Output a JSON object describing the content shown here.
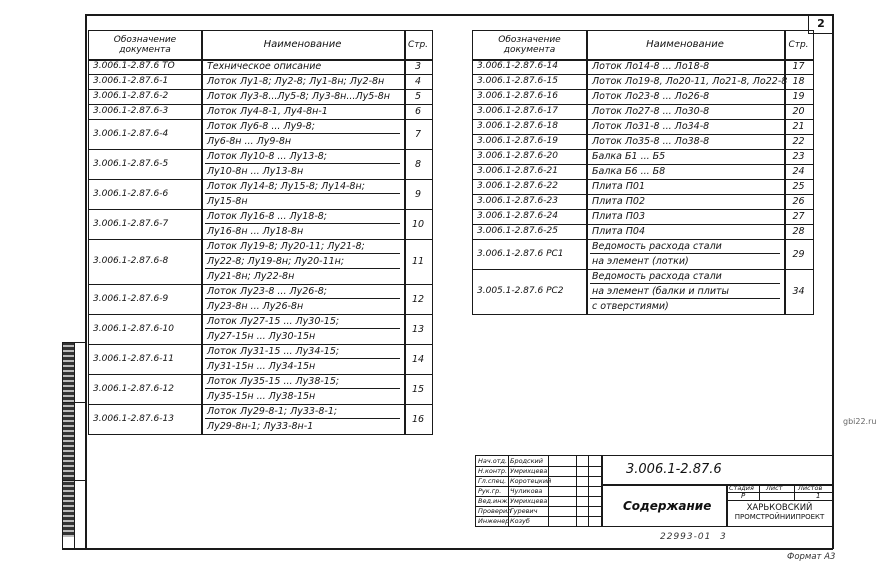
{
  "sheet_number": "2",
  "header": {
    "designation": "Обозначение документа",
    "designation_l1": "Обозначение",
    "designation_l2": "документа",
    "name": "Наименование",
    "page": "Стр."
  },
  "left_rows": [
    {
      "doc": "3.006.1-2.87.6 ТО",
      "lines": [
        "Техническое описание"
      ],
      "page": "3"
    },
    {
      "doc": "3.006.1-2.87.6-1",
      "lines": [
        "Лоток Лу1-8; Лу2-8; Лу1-8н; Лу2-8н"
      ],
      "page": "4"
    },
    {
      "doc": "3.006.1-2.87.6-2",
      "lines": [
        "Лоток Лу3-8...Лу5-8; Лу3-8н...Лу5-8н"
      ],
      "page": "5"
    },
    {
      "doc": "3.006.1-2.87.6-3",
      "lines": [
        "Лоток Лу4-8-1, Лу4-8н-1"
      ],
      "page": "6"
    },
    {
      "doc": "3.006.1-2.87.6-4",
      "lines": [
        "Лоток Лу6-8 ... Лу9-8;",
        "Лу6-8н ... Лу9-8н"
      ],
      "page": "7"
    },
    {
      "doc": "3.006.1-2.87.6-5",
      "lines": [
        "Лоток Лу10-8 ... Лу13-8;",
        "Лу10-8н ... Лу13-8н"
      ],
      "page": "8"
    },
    {
      "doc": "3.006.1-2.87.6-6",
      "lines": [
        "Лоток Лу14-8; Лу15-8; Лу14-8н;",
        "Лу15-8н"
      ],
      "page": "9"
    },
    {
      "doc": "3.006.1-2.87.6-7",
      "lines": [
        "Лоток Лу16-8 ... Лу18-8;",
        "Лу16-8н ... Лу18-8н"
      ],
      "page": "10"
    },
    {
      "doc": "3.006.1-2.87.6-8",
      "lines": [
        "Лоток Лу19-8; Лу20-11; Лу21-8;",
        "Лу22-8; Лу19-8н; Лу20-11н;",
        "Лу21-8н; Лу22-8н"
      ],
      "page": "11"
    },
    {
      "doc": "3.006.1-2.87.6-9",
      "lines": [
        "Лоток Лу23-8 ... Лу26-8;",
        "Лу23-8н ... Лу26-8н"
      ],
      "page": "12"
    },
    {
      "doc": "3.006.1-2.87.6-10",
      "lines": [
        "Лоток Лу27-15 ... Лу30-15;",
        "Лу27-15н ... Лу30-15н"
      ],
      "page": "13"
    },
    {
      "doc": "3.006.1-2.87.6-11",
      "lines": [
        "Лоток Лу31-15 ... Лу34-15;",
        "Лу31-15н ... Лу34-15н"
      ],
      "page": "14"
    },
    {
      "doc": "3.006.1-2.87.6-12",
      "lines": [
        "Лоток Лу35-15 ... Лу38-15;",
        "Лу35-15н ... Лу38-15н"
      ],
      "page": "15"
    },
    {
      "doc": "3.006.1-2.87.6-13",
      "lines": [
        "Лоток Лу29-8-1; Лу33-8-1;",
        "Лу29-8н-1; Лу33-8н-1"
      ],
      "page": "16"
    }
  ],
  "right_rows": [
    {
      "doc": "3.006.1-2.87.6-14",
      "lines": [
        "Лоток Ло14-8 ... Ло18-8"
      ],
      "page": "17"
    },
    {
      "doc": "3.006.1-2.87.6-15",
      "lines": [
        "Лоток Ло19-8, Ло20-11, Ло21-8, Ло22-8"
      ],
      "page": "18"
    },
    {
      "doc": "3.006.1-2.87.6-16",
      "lines": [
        "Лоток Ло23-8 ... Ло26-8"
      ],
      "page": "19"
    },
    {
      "doc": "3.006.1-2.87.6-17",
      "lines": [
        "Лоток Ло27-8 ... Ло30-8"
      ],
      "page": "20"
    },
    {
      "doc": "3.006.1-2.87.6-18",
      "lines": [
        "Лоток Ло31-8 ... Ло34-8"
      ],
      "page": "21"
    },
    {
      "doc": "3.006.1-2.87.6-19",
      "lines": [
        "Лоток Ло35-8 ... Ло38-8"
      ],
      "page": "22"
    },
    {
      "doc": "3.006.1-2.87.6-20",
      "lines": [
        "Балка Б1 ... Б5"
      ],
      "page": "23"
    },
    {
      "doc": "3.006.1-2.87.6-21",
      "lines": [
        "Балка Б6 ... Б8"
      ],
      "page": "24"
    },
    {
      "doc": "3.006.1-2.87.6-22",
      "lines": [
        "Плита П01"
      ],
      "page": "25"
    },
    {
      "doc": "3.006.1-2.87.6-23",
      "lines": [
        "Плита П02"
      ],
      "page": "26"
    },
    {
      "doc": "3.006.1-2.87.6-24",
      "lines": [
        "Плита П03"
      ],
      "page": "27"
    },
    {
      "doc": "3.006.1-2.87.6-25",
      "lines": [
        "Плита П04"
      ],
      "page": "28"
    },
    {
      "doc": "3.006.1-2.87.6 РС1",
      "lines": [
        "Ведомость расхода стали",
        "на элемент (лотки)"
      ],
      "page": "29"
    },
    {
      "doc": "3.005.1-2.87.6 РС2",
      "lines": [
        "Ведомость расхода стали",
        "на элемент (балки и плиты",
        "с отверстиями)"
      ],
      "page": "34"
    }
  ],
  "title_block": {
    "signatories": [
      {
        "role": "Нач.отд.",
        "name": "Бродский"
      },
      {
        "role": "Н.контр.",
        "name": "Умрихцева"
      },
      {
        "role": "Гл.спец.",
        "name": "Коротецкий"
      },
      {
        "role": "Рук.гр.",
        "name": "Чуликова"
      },
      {
        "role": "Вед.инж.",
        "name": "Умрихцева"
      },
      {
        "role": "Проверил",
        "name": "Гуревич"
      },
      {
        "role": "Инженер",
        "name": "Козуб"
      }
    ],
    "code": "3.006.1-2.87.6",
    "title": "Содержание",
    "stage_label": "Стадия",
    "sheet_label": "Лист",
    "sheets_label": "Листов",
    "stage": "Р",
    "sheets": "1",
    "org_l1": "Харьковский",
    "org_l2": "Промстройниипроект"
  },
  "inventory_number": "22993-01",
  "inventory_page": "3",
  "format": "Формат А3",
  "watermark": "gbi22.ru"
}
